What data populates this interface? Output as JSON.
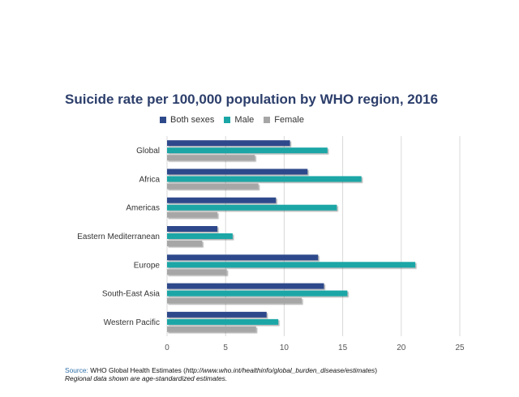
{
  "chart_data": {
    "type": "bar",
    "orientation": "horizontal",
    "title": "Suicide rate per 100,000 population by WHO region, 2016",
    "categories": [
      "Global",
      "Africa",
      "Americas",
      "Eastern Mediterranean",
      "Europe",
      "South-East Asia",
      "Western Pacific"
    ],
    "series": [
      {
        "name": "Both sexes",
        "color": "#2e4a8b",
        "values": [
          10.5,
          12.0,
          9.3,
          4.3,
          12.9,
          13.4,
          8.5
        ]
      },
      {
        "name": "Male",
        "color": "#1aa6a6",
        "values": [
          13.7,
          16.6,
          14.5,
          5.6,
          21.2,
          15.4,
          9.5
        ]
      },
      {
        "name": "Female",
        "color": "#a6a6a6",
        "values": [
          7.5,
          7.8,
          4.3,
          3.0,
          5.1,
          11.5,
          7.6
        ]
      }
    ],
    "xlim": [
      0,
      25
    ],
    "xticks": [
      0,
      5,
      10,
      15,
      20,
      25
    ],
    "grid": "vertical",
    "legend_position": "top"
  },
  "footer": {
    "source_label": "Source:",
    "source_text": " WHO Global Health Estimates (",
    "source_url": "http://www.who.int/healthinfo/global_burden_disease/estimates",
    "source_close": ")",
    "note": "Regional data shown are age-standardized estimates."
  }
}
